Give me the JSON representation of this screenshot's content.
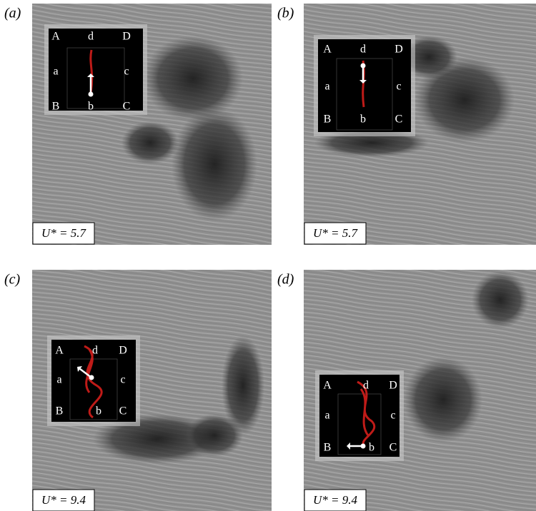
{
  "panels": [
    {
      "label": "(a)",
      "corners": [
        "A",
        "d",
        "D",
        "a",
        "c",
        "B",
        "b",
        "C"
      ],
      "parameter": "U* = 5.7"
    },
    {
      "label": "(b)",
      "corners": [
        "A",
        "d",
        "D",
        "a",
        "c",
        "B",
        "b",
        "C"
      ],
      "parameter": "U* = 5.7"
    },
    {
      "label": "(c)",
      "corners": [
        "A",
        "d",
        "D",
        "a",
        "c",
        "B",
        "b",
        "C"
      ],
      "parameter": "U* = 9.4"
    },
    {
      "label": "(d)",
      "corners": [
        "A",
        "d",
        "D",
        "a",
        "c",
        "B",
        "b",
        "C"
      ],
      "parameter": "U* = 9.4"
    }
  ]
}
